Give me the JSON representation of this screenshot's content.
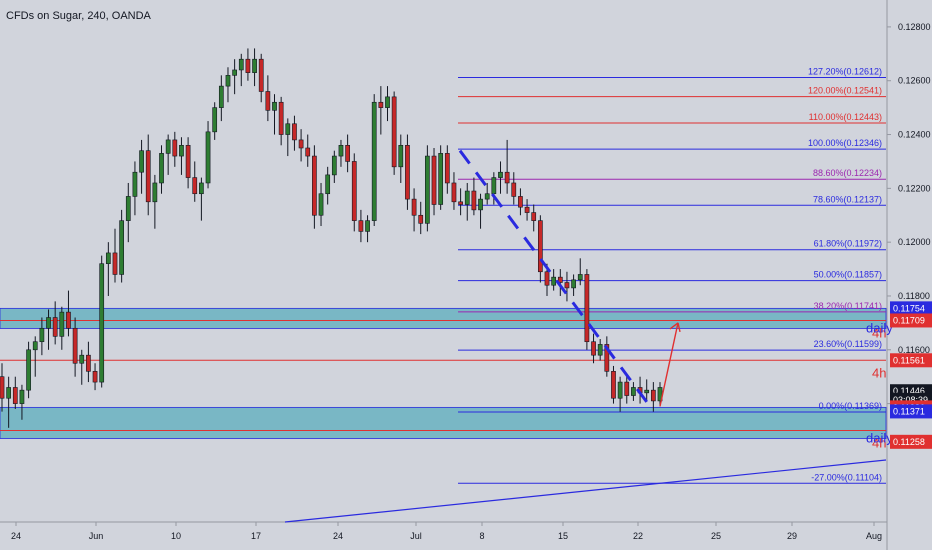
{
  "chart_data": {
    "type": "candlestick",
    "title": "CFDs on Sugar, 240, OANDA",
    "x_ticks": [
      "24",
      "Jun",
      "10",
      "17",
      "24",
      "Jul",
      "8",
      "15",
      "22",
      "25",
      "29",
      "Aug"
    ],
    "y_ticks": [
      "0.12800",
      "0.12600",
      "0.12400",
      "0.12200",
      "0.12000",
      "0.11800",
      "0.11600",
      "0.11400"
    ],
    "ylim": [
      0.1096,
      0.129
    ],
    "grid": false,
    "candles": [
      [
        0.115,
        0.1155,
        0.1137,
        0.1142
      ],
      [
        0.1142,
        0.115,
        0.1131,
        0.1146
      ],
      [
        0.1146,
        0.115,
        0.1138,
        0.114
      ],
      [
        0.114,
        0.1147,
        0.1134,
        0.1145
      ],
      [
        0.1145,
        0.1163,
        0.1142,
        0.116
      ],
      [
        0.116,
        0.1165,
        0.115,
        0.1163
      ],
      [
        0.1163,
        0.1172,
        0.1158,
        0.1168
      ],
      [
        0.1168,
        0.1175,
        0.116,
        0.1172
      ],
      [
        0.1172,
        0.1178,
        0.1162,
        0.1165
      ],
      [
        0.1165,
        0.1176,
        0.116,
        0.1174
      ],
      [
        0.1174,
        0.1182,
        0.1165,
        0.1168
      ],
      [
        0.1168,
        0.1172,
        0.115,
        0.1155
      ],
      [
        0.1155,
        0.116,
        0.1147,
        0.1158
      ],
      [
        0.1158,
        0.1163,
        0.1148,
        0.1152
      ],
      [
        0.1152,
        0.1155,
        0.1145,
        0.1148
      ],
      [
        0.1148,
        0.1195,
        0.1146,
        0.1192
      ],
      [
        0.1192,
        0.12,
        0.118,
        0.1196
      ],
      [
        0.1196,
        0.1205,
        0.1185,
        0.1188
      ],
      [
        0.1188,
        0.1212,
        0.1185,
        0.1208
      ],
      [
        0.1208,
        0.1222,
        0.12,
        0.1217
      ],
      [
        0.1217,
        0.123,
        0.121,
        0.1226
      ],
      [
        0.1226,
        0.1238,
        0.1218,
        0.1234
      ],
      [
        0.1234,
        0.124,
        0.121,
        0.1215
      ],
      [
        0.1215,
        0.1225,
        0.1205,
        0.1222
      ],
      [
        0.1222,
        0.1236,
        0.1218,
        0.1233
      ],
      [
        0.1233,
        0.124,
        0.1225,
        0.1238
      ],
      [
        0.1238,
        0.1241,
        0.1228,
        0.1232
      ],
      [
        0.1232,
        0.1239,
        0.1225,
        0.1236
      ],
      [
        0.1236,
        0.1239,
        0.122,
        0.1224
      ],
      [
        0.1224,
        0.123,
        0.1215,
        0.1218
      ],
      [
        0.1218,
        0.1224,
        0.1208,
        0.1222
      ],
      [
        0.1222,
        0.1245,
        0.122,
        0.1241
      ],
      [
        0.1241,
        0.1252,
        0.1238,
        0.125
      ],
      [
        0.125,
        0.1262,
        0.1245,
        0.1258
      ],
      [
        0.1258,
        0.1265,
        0.1252,
        0.1262
      ],
      [
        0.1262,
        0.1268,
        0.1255,
        0.1264
      ],
      [
        0.1264,
        0.127,
        0.1258,
        0.1268
      ],
      [
        0.1268,
        0.1272,
        0.126,
        0.1263
      ],
      [
        0.1263,
        0.1272,
        0.1258,
        0.1268
      ],
      [
        0.1268,
        0.127,
        0.1252,
        0.1256
      ],
      [
        0.1256,
        0.1262,
        0.1245,
        0.1249
      ],
      [
        0.1249,
        0.1255,
        0.124,
        0.1252
      ],
      [
        0.1252,
        0.1254,
        0.1236,
        0.124
      ],
      [
        0.124,
        0.1246,
        0.1232,
        0.1244
      ],
      [
        0.1244,
        0.1247,
        0.1234,
        0.1238
      ],
      [
        0.1238,
        0.1242,
        0.123,
        0.1235
      ],
      [
        0.1235,
        0.124,
        0.1228,
        0.1232
      ],
      [
        0.1232,
        0.1236,
        0.1205,
        0.121
      ],
      [
        0.121,
        0.1222,
        0.1206,
        0.1218
      ],
      [
        0.1218,
        0.1228,
        0.1214,
        0.1225
      ],
      [
        0.1225,
        0.1234,
        0.1222,
        0.1232
      ],
      [
        0.1232,
        0.1238,
        0.1228,
        0.1236
      ],
      [
        0.1236,
        0.124,
        0.1226,
        0.123
      ],
      [
        0.123,
        0.1233,
        0.1204,
        0.1208
      ],
      [
        0.1208,
        0.1212,
        0.12,
        0.1204
      ],
      [
        0.1204,
        0.121,
        0.12,
        0.1208
      ],
      [
        0.1208,
        0.1255,
        0.1206,
        0.1252
      ],
      [
        0.1252,
        0.1258,
        0.124,
        0.125
      ],
      [
        0.125,
        0.1258,
        0.1245,
        0.1254
      ],
      [
        0.1254,
        0.1256,
        0.1225,
        0.1228
      ],
      [
        0.1228,
        0.124,
        0.1222,
        0.1236
      ],
      [
        0.1236,
        0.124,
        0.1212,
        0.1216
      ],
      [
        0.1216,
        0.122,
        0.1204,
        0.121
      ],
      [
        0.121,
        0.1215,
        0.1203,
        0.1207
      ],
      [
        0.1207,
        0.1236,
        0.1204,
        0.1232
      ],
      [
        0.1232,
        0.1235,
        0.121,
        0.1214
      ],
      [
        0.1214,
        0.1236,
        0.1212,
        0.1233
      ],
      [
        0.1233,
        0.1236,
        0.1218,
        0.1222
      ],
      [
        0.1222,
        0.1226,
        0.1212,
        0.1215
      ],
      [
        0.1215,
        0.122,
        0.121,
        0.1214
      ],
      [
        0.1214,
        0.1222,
        0.1208,
        0.1219
      ],
      [
        0.1219,
        0.1224,
        0.121,
        0.1212
      ],
      [
        0.1212,
        0.1218,
        0.1205,
        0.1216
      ],
      [
        0.1216,
        0.1222,
        0.1214,
        0.1218
      ],
      [
        0.1218,
        0.1226,
        0.1214,
        0.1224
      ],
      [
        0.1224,
        0.123,
        0.1218,
        0.1226
      ],
      [
        0.1226,
        0.1238,
        0.1218,
        0.1222
      ],
      [
        0.1222,
        0.1226,
        0.1214,
        0.1217
      ],
      [
        0.1217,
        0.122,
        0.121,
        0.1213
      ],
      [
        0.1213,
        0.1216,
        0.1208,
        0.1211
      ],
      [
        0.1211,
        0.1214,
        0.1204,
        0.1208
      ],
      [
        0.1208,
        0.121,
        0.1185,
        0.1189
      ],
      [
        0.1189,
        0.1192,
        0.118,
        0.1184
      ],
      [
        0.1184,
        0.119,
        0.1182,
        0.1187
      ],
      [
        0.1187,
        0.119,
        0.118,
        0.1185
      ],
      [
        0.1185,
        0.1189,
        0.1178,
        0.1183
      ],
      [
        0.1183,
        0.1188,
        0.118,
        0.1186
      ],
      [
        0.1186,
        0.1194,
        0.1184,
        0.1188
      ],
      [
        0.1188,
        0.119,
        0.116,
        0.1163
      ],
      [
        0.1163,
        0.1166,
        0.1155,
        0.1158
      ],
      [
        0.1158,
        0.1164,
        0.1156,
        0.1162
      ],
      [
        0.1162,
        0.1165,
        0.115,
        0.1152
      ],
      [
        0.1152,
        0.1154,
        0.114,
        0.1142
      ],
      [
        0.1142,
        0.115,
        0.1137,
        0.1148
      ],
      [
        0.1148,
        0.1151,
        0.114,
        0.1143
      ],
      [
        0.1143,
        0.1148,
        0.1141,
        0.1146
      ],
      [
        0.1146,
        0.115,
        0.114,
        0.1144
      ],
      [
        0.1144,
        0.1149,
        0.1141,
        0.1145
      ],
      [
        0.1145,
        0.1148,
        0.1137,
        0.1141
      ],
      [
        0.1141,
        0.1148,
        0.1139,
        0.1146
      ]
    ],
    "fib_levels": [
      {
        "label": "127.20%(0.12612)",
        "price": 0.12612,
        "color": "#2a2adf"
      },
      {
        "label": "120.00%(0.12541)",
        "price": 0.12541,
        "color": "#e03030"
      },
      {
        "label": "110.00%(0.12443)",
        "price": 0.12443,
        "color": "#e03030"
      },
      {
        "label": "100.00%(0.12346)",
        "price": 0.12346,
        "color": "#2a2adf"
      },
      {
        "label": "88.60%(0.12234)",
        "price": 0.12234,
        "color": "#9c27b0"
      },
      {
        "label": "78.60%(0.12137)",
        "price": 0.12137,
        "color": "#2a2adf"
      },
      {
        "label": "61.80%(0.11972)",
        "price": 0.11972,
        "color": "#2a2adf"
      },
      {
        "label": "50.00%(0.11857)",
        "price": 0.11857,
        "color": "#2a2adf"
      },
      {
        "label": "38.20%(0.11741)",
        "price": 0.11741,
        "color": "#9c27b0"
      },
      {
        "label": "23.60%(0.11599)",
        "price": 0.11599,
        "color": "#2a2adf"
      },
      {
        "label": "0.00%(0.11369)",
        "price": 0.11369,
        "color": "#2a2adf"
      },
      {
        "label": "-27.00%(0.11104)",
        "price": 0.11104,
        "color": "#2a2adf"
      }
    ],
    "zones": [
      {
        "top": 0.11754,
        "bottom": 0.11709,
        "color": "#4aa8b8",
        "label": "daily"
      },
      {
        "top": 0.11386,
        "bottom": 0.113,
        "color": "#4aa8b8",
        "label": "daily"
      }
    ],
    "horizontal_lines": [
      {
        "price": 0.11709,
        "color": "#e03030",
        "label": "4h"
      },
      {
        "price": 0.11561,
        "color": "#e03030",
        "label": "4h"
      },
      {
        "price": 0.113,
        "color": "#e03030",
        "label": "4h"
      }
    ],
    "price_tags": [
      {
        "text": "0.11754",
        "price": 0.11754,
        "color": "#2a2adf"
      },
      {
        "text": "0.11709",
        "price": 0.11709,
        "color": "#e03030"
      },
      {
        "text": "0.11561",
        "price": 0.11561,
        "color": "#e03030"
      },
      {
        "text": "0.11446",
        "price": 0.11446,
        "color": "#131722"
      },
      {
        "text": "03:08:39",
        "price": 0.11414,
        "color": "#131722"
      },
      {
        "text": "0.11386",
        "price": 0.11386,
        "color": "#e03030"
      },
      {
        "text": "0.11371",
        "price": 0.11371,
        "color": "#2a2adf"
      },
      {
        "text": "0.11258",
        "price": 0.11258,
        "color": "#e03030"
      }
    ],
    "colors": {
      "background": "#d1d4dc",
      "bull": "#2e7d32",
      "bear": "#c62828",
      "axis_text": "#131722"
    }
  }
}
